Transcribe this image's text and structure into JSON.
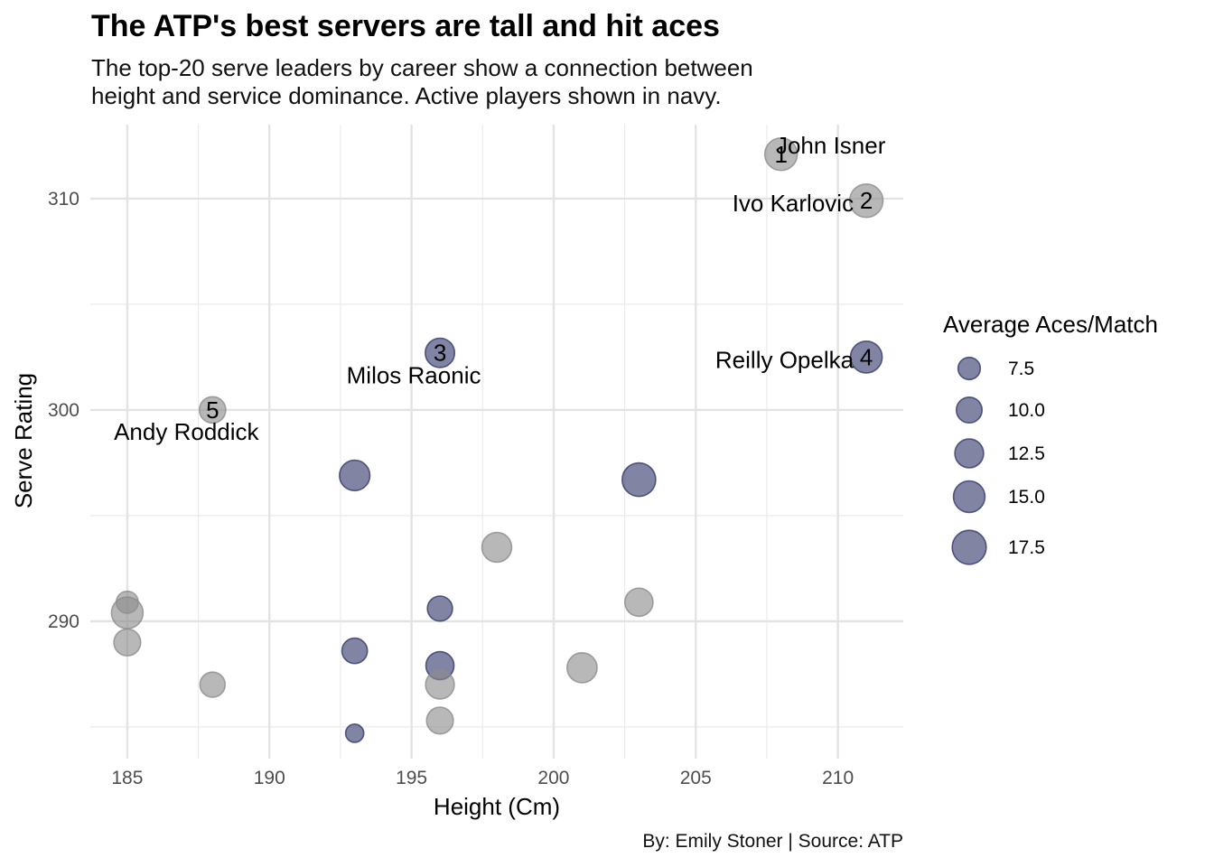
{
  "chart_data": {
    "type": "scatter",
    "title": "The ATP's best servers are tall and hit aces",
    "subtitle_lines": [
      "The top-20 serve leaders by career show a connection between",
      "height and service dominance. Active players shown in navy."
    ],
    "caption": "By: Emily Stoner | Source: ATP",
    "xlabel": "Height (Cm)",
    "ylabel": "Serve Rating",
    "xlim": [
      183.7,
      212.3
    ],
    "ylim": [
      283.5,
      313.5
    ],
    "x_ticks": [
      185,
      190,
      195,
      200,
      205,
      210
    ],
    "y_ticks": [
      290,
      300,
      310
    ],
    "grid": true,
    "colors": {
      "active": "#33386b",
      "retired": "#8c8c8c"
    },
    "legend": {
      "title": "Average Aces/Match",
      "position": "right",
      "entries": [
        7.5,
        10.0,
        12.5,
        15.0,
        17.5
      ],
      "entry_labels": [
        "7.5",
        "10.0",
        "12.5",
        "15.0",
        "17.5"
      ]
    },
    "points": [
      {
        "x": 208,
        "y": 312.1,
        "aces": 16.0,
        "active": false,
        "rank": "1",
        "name": "John Isner"
      },
      {
        "x": 211,
        "y": 309.9,
        "aces": 16.8,
        "active": false,
        "rank": "2",
        "name": "Ivo Karlovic"
      },
      {
        "x": 196,
        "y": 302.7,
        "aces": 13.0,
        "active": true,
        "rank": "3",
        "name": "Milos Raonic"
      },
      {
        "x": 211,
        "y": 302.5,
        "aces": 15.2,
        "active": true,
        "rank": "4",
        "name": "Reilly Opelka"
      },
      {
        "x": 188,
        "y": 300.0,
        "aces": 10.5,
        "active": false,
        "rank": "5",
        "name": "Andy Roddick"
      },
      {
        "x": 193,
        "y": 296.9,
        "aces": 14.0,
        "active": true,
        "rank": "",
        "name": ""
      },
      {
        "x": 203,
        "y": 296.7,
        "aces": 17.0,
        "active": true,
        "rank": "",
        "name": ""
      },
      {
        "x": 198,
        "y": 293.5,
        "aces": 13.4,
        "active": false,
        "rank": "",
        "name": ""
      },
      {
        "x": 185,
        "y": 290.9,
        "aces": 7.3,
        "active": false,
        "rank": "",
        "name": ""
      },
      {
        "x": 185,
        "y": 290.4,
        "aces": 15.1,
        "active": false,
        "rank": "",
        "name": ""
      },
      {
        "x": 203,
        "y": 290.9,
        "aces": 12.0,
        "active": false,
        "rank": "",
        "name": ""
      },
      {
        "x": 196,
        "y": 290.6,
        "aces": 9.5,
        "active": true,
        "rank": "",
        "name": ""
      },
      {
        "x": 185,
        "y": 289.0,
        "aces": 10.8,
        "active": false,
        "rank": "",
        "name": ""
      },
      {
        "x": 193,
        "y": 288.6,
        "aces": 9.8,
        "active": true,
        "rank": "",
        "name": ""
      },
      {
        "x": 196,
        "y": 287.9,
        "aces": 11.9,
        "active": true,
        "rank": "",
        "name": ""
      },
      {
        "x": 201,
        "y": 287.8,
        "aces": 13.6,
        "active": false,
        "rank": "",
        "name": ""
      },
      {
        "x": 196,
        "y": 287.0,
        "aces": 12.4,
        "active": false,
        "rank": "",
        "name": ""
      },
      {
        "x": 188,
        "y": 287.0,
        "aces": 9.6,
        "active": false,
        "rank": "",
        "name": ""
      },
      {
        "x": 196,
        "y": 285.3,
        "aces": 10.8,
        "active": false,
        "rank": "",
        "name": ""
      },
      {
        "x": 193,
        "y": 284.7,
        "aces": 5.0,
        "active": true,
        "rank": "",
        "name": ""
      }
    ]
  }
}
